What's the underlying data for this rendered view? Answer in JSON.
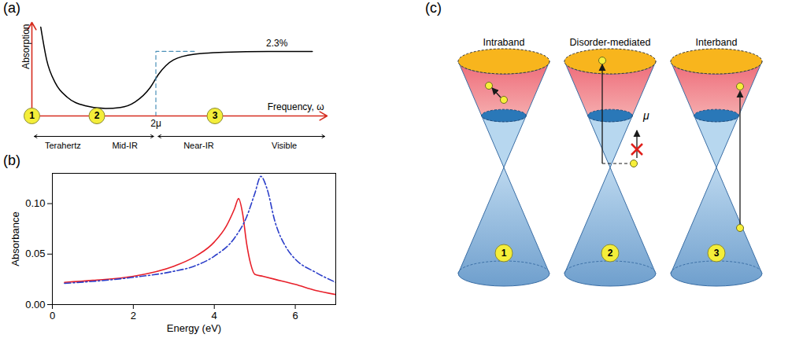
{
  "chart_data": [
    {
      "panel": "(a)",
      "type": "line",
      "tick_labels": "x",
      "y_label": "Absorption",
      "x_label": "Frequency, ω",
      "xlim": [
        0,
        10
      ],
      "ylim": [
        0,
        10
      ],
      "xticks": [
        {
          "value": 4.2,
          "label": "2μ"
        }
      ],
      "yticks": [],
      "series": [
        {
          "color": "#000000",
          "line_style": "solid",
          "x": [
            0.3,
            0.5,
            0.8,
            1.2,
            1.8,
            2.5,
            3.0,
            3.5,
            4.0,
            4.3,
            4.8,
            5.5,
            6.5,
            8.0,
            9.5
          ],
          "values": [
            9.5,
            6.0,
            3.5,
            2.0,
            1.1,
            0.8,
            0.9,
            1.5,
            3.0,
            4.5,
            6.0,
            6.6,
            6.8,
            6.9,
            6.9
          ]
        },
        {
          "color": "#4a90b8",
          "line_style": "dashed",
          "x": [
            4.2,
            4.2,
            5.6
          ],
          "values": [
            0,
            6.9,
            6.9
          ]
        }
      ],
      "annotations": [
        {
          "text": "2.3%",
          "x": 8.3,
          "y": 6.9
        }
      ],
      "markers": [
        {
          "label": "1",
          "x": 0
        },
        {
          "label": "2",
          "x": 2.2
        },
        {
          "label": "3",
          "x": 6.2
        }
      ],
      "regions": [
        {
          "labels": [
            "Terahertz",
            "Mid-IR"
          ],
          "from": 0,
          "to": 4.2
        },
        {
          "labels": [
            "Near-IR",
            "Visible"
          ],
          "from": 4.2,
          "to": 10
        }
      ]
    },
    {
      "panel": "(b)",
      "type": "line",
      "x_label": "Energy (eV)",
      "y_label": "Absorbance",
      "xlim": [
        0,
        7
      ],
      "ylim": [
        0,
        0.13
      ],
      "xticks": [
        0,
        2,
        4,
        6
      ],
      "yticks": [
        {
          "value": 0,
          "label": "0.00"
        },
        {
          "value": 0.05,
          "label": "0.05"
        },
        {
          "value": 0.1,
          "label": "0.10"
        }
      ],
      "series": [
        {
          "color": "#e8202a",
          "line_style": "solid",
          "x": [
            0.3,
            1,
            2,
            3,
            3.5,
            4,
            4.3,
            4.5,
            4.6,
            4.7,
            4.8,
            4.9,
            5.0,
            5.2,
            5.5,
            6,
            6.5,
            7
          ],
          "values": [
            0.022,
            0.024,
            0.028,
            0.038,
            0.047,
            0.062,
            0.078,
            0.095,
            0.105,
            0.09,
            0.06,
            0.04,
            0.03,
            0.028,
            0.025,
            0.02,
            0.014,
            0.01
          ]
        },
        {
          "color": "#2b3ec9",
          "line_style": "dashdot",
          "x": [
            0.3,
            1,
            2,
            3,
            3.5,
            4,
            4.5,
            4.8,
            5.0,
            5.15,
            5.3,
            5.5,
            5.8,
            6,
            6.5,
            7
          ],
          "values": [
            0.021,
            0.023,
            0.027,
            0.033,
            0.038,
            0.048,
            0.066,
            0.087,
            0.11,
            0.127,
            0.115,
            0.082,
            0.055,
            0.045,
            0.032,
            0.022
          ]
        }
      ]
    }
  ],
  "diagram": {
    "panel": "(c)",
    "fermi_label": "μ",
    "cones": [
      {
        "title": "Intraband",
        "number": "1"
      },
      {
        "title": "Disorder-mediated",
        "number": "2"
      },
      {
        "title": "Interband",
        "number": "3"
      }
    ]
  }
}
